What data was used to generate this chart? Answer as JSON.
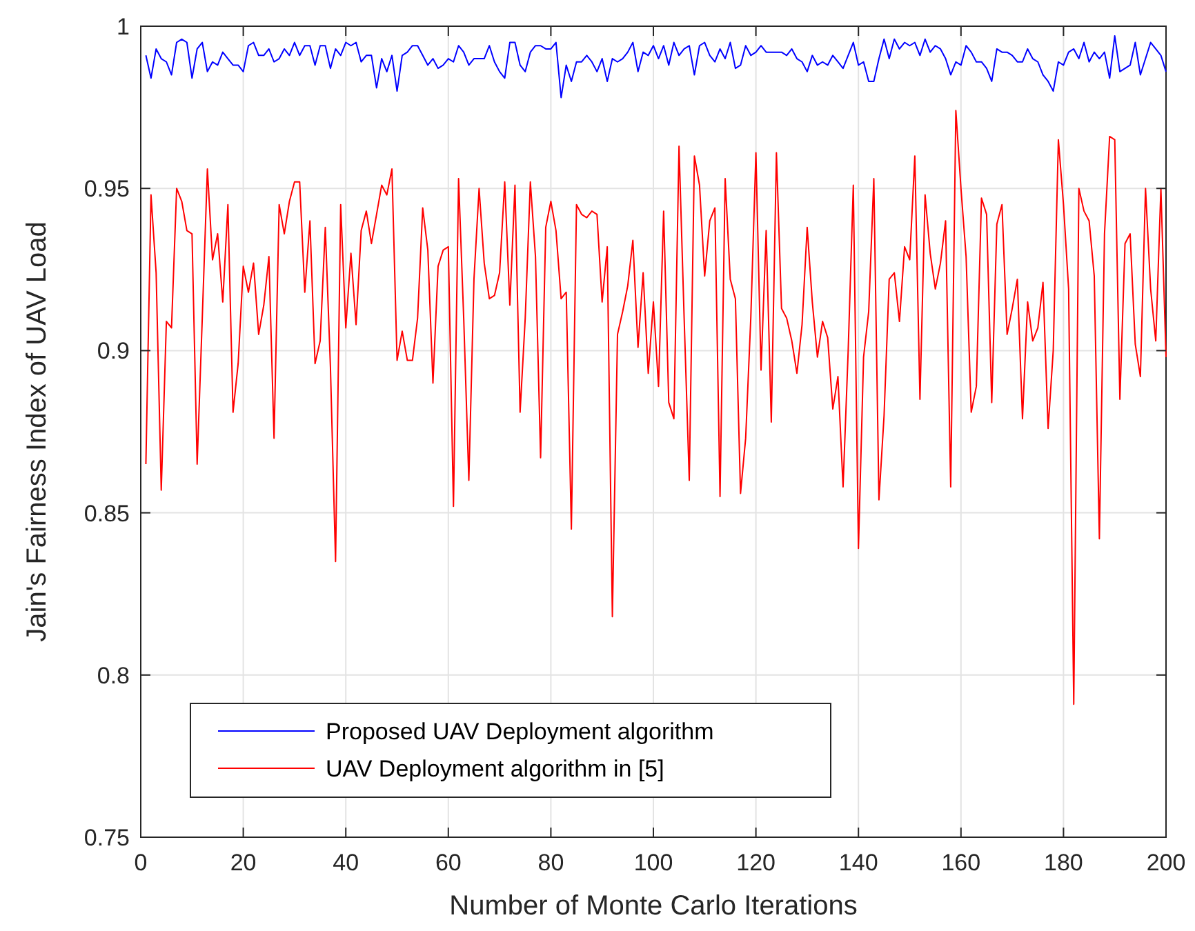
{
  "chart_data": {
    "type": "line",
    "xlabel": "Number of Monte Carlo Iterations",
    "ylabel": "Jain's Fairness Index of UAV Load",
    "x": [
      1,
      2,
      3,
      4,
      5,
      6,
      7,
      8,
      9,
      10,
      11,
      12,
      13,
      14,
      15,
      16,
      17,
      18,
      19,
      20,
      21,
      22,
      23,
      24,
      25,
      26,
      27,
      28,
      29,
      30,
      31,
      32,
      33,
      34,
      35,
      36,
      37,
      38,
      39,
      40,
      41,
      42,
      43,
      44,
      45,
      46,
      47,
      48,
      49,
      50,
      51,
      52,
      53,
      54,
      55,
      56,
      57,
      58,
      59,
      60,
      61,
      62,
      63,
      64,
      65,
      66,
      67,
      68,
      69,
      70,
      71,
      72,
      73,
      74,
      75,
      76,
      77,
      78,
      79,
      80,
      81,
      82,
      83,
      84,
      85,
      86,
      87,
      88,
      89,
      90,
      91,
      92,
      93,
      94,
      95,
      96,
      97,
      98,
      99,
      100,
      101,
      102,
      103,
      104,
      105,
      106,
      107,
      108,
      109,
      110,
      111,
      112,
      113,
      114,
      115,
      116,
      117,
      118,
      119,
      120,
      121,
      122,
      123,
      124,
      125,
      126,
      127,
      128,
      129,
      130,
      131,
      132,
      133,
      134,
      135,
      136,
      137,
      138,
      139,
      140,
      141,
      142,
      143,
      144,
      145,
      146,
      147,
      148,
      149,
      150,
      151,
      152,
      153,
      154,
      155,
      156,
      157,
      158,
      159,
      160,
      161,
      162,
      163,
      164,
      165,
      166,
      167,
      168,
      169,
      170,
      171,
      172,
      173,
      174,
      175,
      176,
      177,
      178,
      179,
      180,
      181,
      182,
      183,
      184,
      185,
      186,
      187,
      188,
      189,
      190,
      191,
      192,
      193,
      194,
      195,
      196,
      197,
      198,
      199,
      200
    ],
    "series": [
      {
        "name": "Proposed UAV Deployment algorithm",
        "color": "#0000ff",
        "values": [
          0.991,
          0.984,
          0.993,
          0.99,
          0.989,
          0.985,
          0.995,
          0.996,
          0.995,
          0.984,
          0.993,
          0.995,
          0.986,
          0.989,
          0.988,
          0.992,
          0.99,
          0.988,
          0.988,
          0.986,
          0.994,
          0.995,
          0.991,
          0.991,
          0.993,
          0.989,
          0.99,
          0.993,
          0.991,
          0.995,
          0.991,
          0.994,
          0.994,
          0.988,
          0.994,
          0.994,
          0.987,
          0.993,
          0.991,
          0.995,
          0.994,
          0.995,
          0.989,
          0.991,
          0.991,
          0.981,
          0.99,
          0.986,
          0.991,
          0.98,
          0.991,
          0.992,
          0.994,
          0.994,
          0.991,
          0.988,
          0.99,
          0.987,
          0.988,
          0.99,
          0.989,
          0.994,
          0.992,
          0.988,
          0.99,
          0.99,
          0.99,
          0.994,
          0.989,
          0.986,
          0.984,
          0.995,
          0.995,
          0.988,
          0.986,
          0.992,
          0.994,
          0.994,
          0.993,
          0.993,
          0.995,
          0.978,
          0.988,
          0.983,
          0.989,
          0.989,
          0.991,
          0.989,
          0.986,
          0.99,
          0.983,
          0.99,
          0.989,
          0.99,
          0.992,
          0.995,
          0.986,
          0.992,
          0.991,
          0.994,
          0.99,
          0.994,
          0.988,
          0.995,
          0.991,
          0.993,
          0.994,
          0.985,
          0.994,
          0.995,
          0.991,
          0.989,
          0.993,
          0.99,
          0.995,
          0.987,
          0.988,
          0.994,
          0.991,
          0.992,
          0.994,
          0.992,
          0.992,
          0.992,
          0.992,
          0.991,
          0.993,
          0.99,
          0.989,
          0.986,
          0.991,
          0.988,
          0.989,
          0.988,
          0.991,
          0.989,
          0.987,
          0.991,
          0.995,
          0.988,
          0.989,
          0.983,
          0.983,
          0.99,
          0.996,
          0.99,
          0.996,
          0.993,
          0.995,
          0.994,
          0.995,
          0.991,
          0.996,
          0.992,
          0.994,
          0.993,
          0.99,
          0.985,
          0.989,
          0.988,
          0.994,
          0.992,
          0.989,
          0.989,
          0.987,
          0.983,
          0.993,
          0.992,
          0.992,
          0.991,
          0.989,
          0.989,
          0.993,
          0.99,
          0.989,
          0.985,
          0.983,
          0.98,
          0.989,
          0.988,
          0.992,
          0.993,
          0.99,
          0.995,
          0.989,
          0.992,
          0.99,
          0.992,
          0.984,
          0.997,
          0.986,
          0.987,
          0.988,
          0.995,
          0.985,
          0.99,
          0.995,
          0.993,
          0.991,
          0.986
        ]
      },
      {
        "name": "UAV Deployment algorithm in [5]",
        "color": "#ff0000",
        "values": [
          0.865,
          0.948,
          0.924,
          0.857,
          0.909,
          0.907,
          0.95,
          0.946,
          0.937,
          0.936,
          0.865,
          0.91,
          0.956,
          0.928,
          0.936,
          0.915,
          0.945,
          0.881,
          0.896,
          0.926,
          0.918,
          0.927,
          0.905,
          0.914,
          0.929,
          0.873,
          0.945,
          0.936,
          0.946,
          0.952,
          0.952,
          0.918,
          0.94,
          0.896,
          0.903,
          0.938,
          0.895,
          0.835,
          0.945,
          0.907,
          0.93,
          0.908,
          0.937,
          0.943,
          0.933,
          0.942,
          0.951,
          0.948,
          0.956,
          0.897,
          0.906,
          0.897,
          0.897,
          0.91,
          0.944,
          0.931,
          0.89,
          0.926,
          0.931,
          0.932,
          0.852,
          0.953,
          0.91,
          0.86,
          0.922,
          0.95,
          0.927,
          0.916,
          0.917,
          0.924,
          0.952,
          0.914,
          0.951,
          0.881,
          0.91,
          0.952,
          0.929,
          0.867,
          0.938,
          0.946,
          0.937,
          0.916,
          0.918,
          0.845,
          0.945,
          0.942,
          0.941,
          0.943,
          0.942,
          0.915,
          0.932,
          0.818,
          0.905,
          0.912,
          0.92,
          0.934,
          0.901,
          0.924,
          0.893,
          0.915,
          0.889,
          0.943,
          0.884,
          0.879,
          0.963,
          0.91,
          0.86,
          0.96,
          0.951,
          0.923,
          0.94,
          0.944,
          0.855,
          0.953,
          0.922,
          0.916,
          0.856,
          0.873,
          0.91,
          0.961,
          0.894,
          0.937,
          0.878,
          0.961,
          0.913,
          0.91,
          0.903,
          0.893,
          0.908,
          0.938,
          0.915,
          0.898,
          0.909,
          0.904,
          0.882,
          0.892,
          0.858,
          0.9,
          0.951,
          0.839,
          0.898,
          0.912,
          0.953,
          0.854,
          0.88,
          0.922,
          0.924,
          0.909,
          0.932,
          0.928,
          0.96,
          0.885,
          0.948,
          0.93,
          0.919,
          0.927,
          0.94,
          0.858,
          0.974,
          0.95,
          0.929,
          0.881,
          0.889,
          0.947,
          0.942,
          0.884,
          0.939,
          0.945,
          0.905,
          0.913,
          0.922,
          0.879,
          0.915,
          0.903,
          0.907,
          0.921,
          0.876,
          0.9,
          0.965,
          0.945,
          0.919,
          0.791,
          0.95,
          0.943,
          0.94,
          0.923,
          0.842,
          0.936,
          0.966,
          0.965,
          0.885,
          0.933,
          0.936,
          0.902,
          0.892,
          0.95,
          0.919,
          0.903,
          0.95,
          0.898
        ]
      }
    ],
    "xlim": [
      0,
      200
    ],
    "xticks": [
      0,
      20,
      40,
      60,
      80,
      100,
      120,
      140,
      160,
      180,
      200
    ],
    "ylim": [
      0.75,
      1
    ],
    "yticks": [
      0.75,
      0.8,
      0.85,
      0.9,
      0.95,
      1
    ],
    "grid": true,
    "legend": "bottom left",
    "marker": "none",
    "line_style": "solid"
  }
}
